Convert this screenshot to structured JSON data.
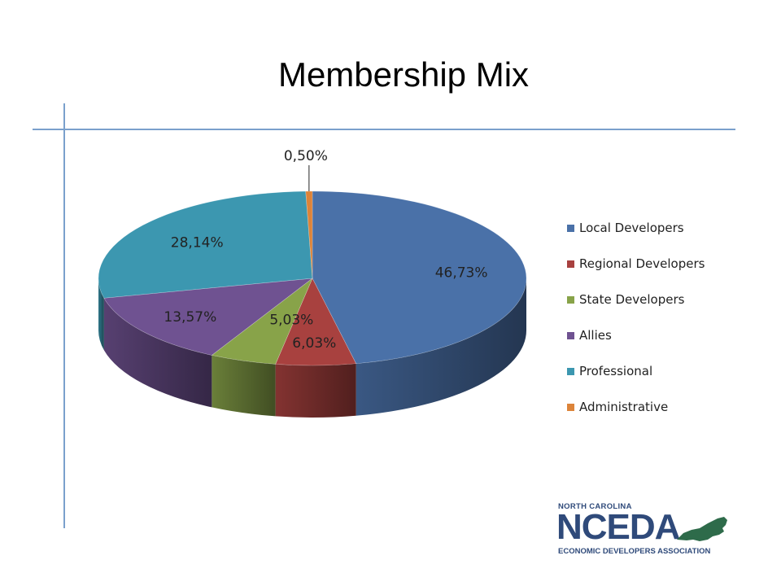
{
  "slide": {
    "title": "Membership Mix"
  },
  "chart_data": {
    "type": "pie",
    "title": "Membership Mix",
    "categories": [
      "Local Developers",
      "Regional Developers",
      "State Developers",
      "Allies",
      "Professional",
      "Administrative"
    ],
    "values": [
      46.73,
      6.03,
      5.03,
      13.57,
      28.14,
      0.5
    ],
    "data_labels": [
      "46,73%",
      "6,03%",
      "5,03%",
      "13,57%",
      "28,14%",
      "0,50%"
    ],
    "colors": [
      "#4a71a8",
      "#a8413f",
      "#88a349",
      "#6f5291",
      "#3c97b0",
      "#dc843a"
    ],
    "style": "3d-pie",
    "legend_position": "right"
  },
  "logo": {
    "top_text": "NORTH CAROLINA",
    "main_text": "NCEDA",
    "bottom_text": "ECONOMIC DEVELOPERS ASSOCIATION",
    "color": "#2f4a7a",
    "state_color": "#2e6b4a"
  }
}
